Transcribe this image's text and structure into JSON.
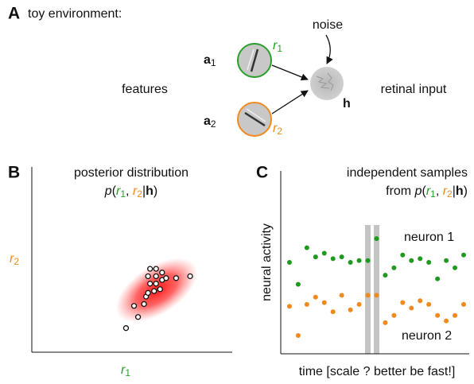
{
  "panel_a": {
    "letter": "A",
    "title": "toy environment:",
    "noise": "noise",
    "features": "features",
    "output": "retinal input",
    "a1": {
      "text": "a",
      "sub": "1"
    },
    "a2": {
      "text": "a",
      "sub": "2"
    },
    "r1": {
      "text": "r",
      "sub": "1"
    },
    "r2": {
      "text": "r",
      "sub": "2"
    },
    "h": "h"
  },
  "chart_data": [
    {
      "type": "scatter",
      "letter": "B",
      "title": "posterior distribution",
      "formula": [
        "p",
        "(",
        "r",
        "1",
        ", ",
        "r",
        "2",
        "|",
        "h",
        ")"
      ],
      "xlabel": {
        "text": "r",
        "sub": "1"
      },
      "ylabel": {
        "text": "r",
        "sub": "2"
      },
      "xlim": [
        0,
        100
      ],
      "ylim": [
        0,
        100
      ],
      "x": [
        47,
        53,
        51,
        56,
        57,
        58,
        61,
        64,
        62,
        59,
        65,
        58,
        62,
        67,
        72,
        65,
        59,
        79,
        62
      ],
      "y": [
        13,
        19,
        25,
        26,
        30,
        32,
        33,
        34,
        37,
        37,
        39,
        41,
        41,
        40,
        40,
        43,
        45,
        41,
        45
      ]
    },
    {
      "type": "dots",
      "letter": "C",
      "title": "independent samples",
      "formula": [
        "from ",
        "p",
        "(",
        "r",
        "1",
        ", ",
        "r",
        "2",
        "|",
        "h",
        ")"
      ],
      "xlabel": "time [scale ? better be fast!]",
      "ylabel": "neural activity",
      "xlim": [
        0,
        21
      ],
      "ylim": [
        0,
        100
      ],
      "highlight": [
        10,
        11
      ],
      "x": [
        1,
        2,
        3,
        4,
        5,
        6,
        7,
        8,
        9,
        10,
        11,
        12,
        13,
        14,
        15,
        16,
        17,
        18,
        19,
        20,
        21
      ],
      "series": [
        {
          "name": "neuron 1",
          "color": "#1f9a1f",
          "values": [
            50,
            38,
            58,
            53,
            55,
            52,
            53,
            50,
            51,
            51,
            63,
            43,
            47,
            54,
            51,
            52,
            50,
            41,
            51,
            47,
            54
          ]
        },
        {
          "name": "neuron 2",
          "color": "#f08a1e",
          "values": [
            26,
            10,
            27,
            31,
            28,
            23,
            32,
            24,
            27,
            32,
            32,
            17,
            21,
            28,
            25,
            29,
            27,
            21,
            18,
            21,
            27
          ]
        }
      ]
    }
  ]
}
